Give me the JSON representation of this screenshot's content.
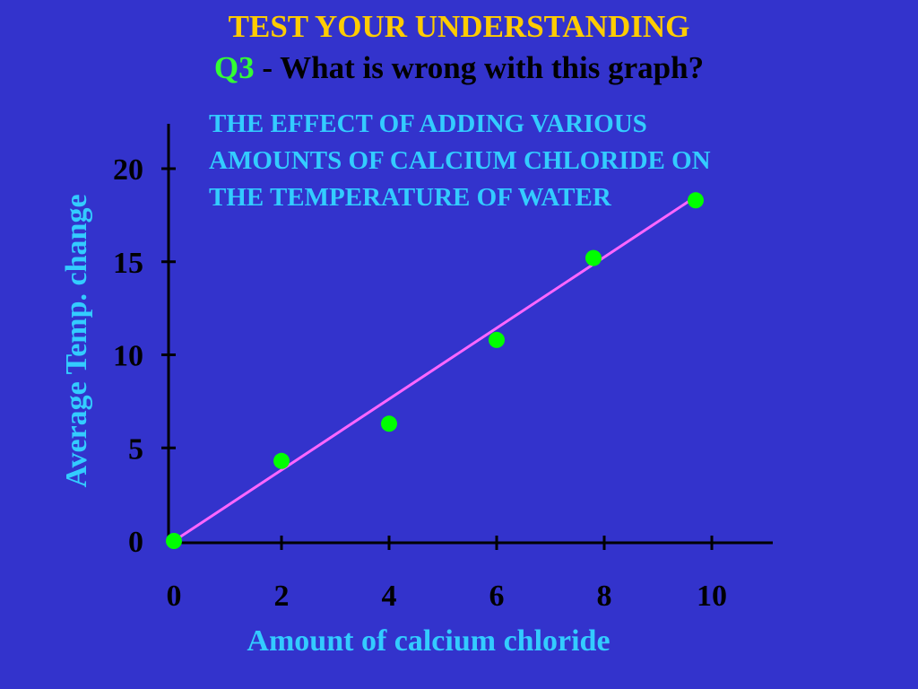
{
  "slide": {
    "heading": "TEST YOUR UNDERSTANDING",
    "question_number": "Q3",
    "question_text": " - What is wrong with this graph?"
  },
  "colors": {
    "background": "#3333cc",
    "heading": "#ffcc00",
    "question_number": "#33ff33",
    "label": "#33ccff",
    "axis": "#000000",
    "line": "#ff66ff",
    "point": "#00ff00"
  },
  "chart_data": {
    "type": "scatter",
    "title_lines": [
      "THE EFFECT OF ADDING VARIOUS",
      "AMOUNTS OF CALCIUM CHLORIDE ON",
      "THE TEMPERATURE OF WATER"
    ],
    "xlabel": "Amount of calcium chloride",
    "ylabel": "Average Temp. change",
    "xlim": [
      0,
      11.2
    ],
    "ylim": [
      0,
      22
    ],
    "x_ticks": [
      0,
      2,
      4,
      6,
      8,
      10
    ],
    "y_ticks": [
      0,
      5,
      10,
      15,
      20
    ],
    "grid": false,
    "series": [
      {
        "points": [
          {
            "x": 0,
            "y": 0
          },
          {
            "x": 2,
            "y": 4.3
          },
          {
            "x": 4,
            "y": 6.3
          },
          {
            "x": 6,
            "y": 10.8
          },
          {
            "x": 7.8,
            "y": 15.2
          },
          {
            "x": 9.7,
            "y": 18.3
          }
        ]
      }
    ],
    "trend_line": {
      "x": [
        0,
        9.6
      ],
      "y": [
        0,
        18.3
      ]
    }
  }
}
